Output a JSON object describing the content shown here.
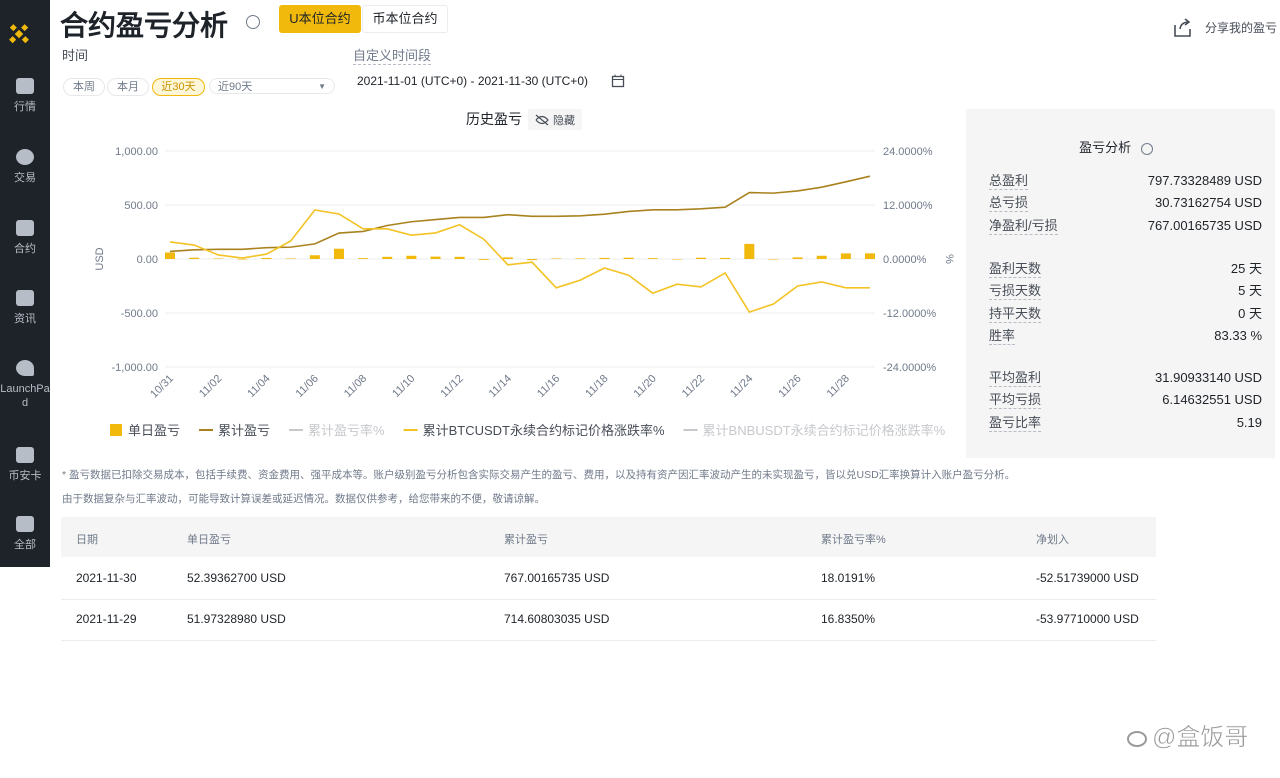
{
  "sidebar": {
    "nav": [
      "行情",
      "交易",
      "合约",
      "资讯",
      "LaunchPad",
      "币安卡",
      "全部"
    ]
  },
  "header": {
    "title": "合约盈亏分析",
    "tabs": [
      "U本位合约",
      "币本位合约"
    ],
    "share": "分享我的盈亏"
  },
  "time_filter": {
    "label": "时间",
    "custom": "自定义时间段",
    "buttons": [
      "本周",
      "本月",
      "近30天",
      "近90天"
    ],
    "range": "2021-11-01 (UTC+0) - 2021-11-30 (UTC+0)"
  },
  "chart_data": {
    "type": "combo",
    "title": "历史盈亏",
    "toggle": "隐藏",
    "y_label": "USD",
    "y2_label": "%",
    "grid": true,
    "legend": "bottom",
    "categories": [
      "10/31",
      null,
      "11/02",
      null,
      "11/04",
      null,
      "11/06",
      null,
      "11/08",
      null,
      "11/10",
      null,
      "11/12",
      null,
      "11/14",
      null,
      "11/16",
      null,
      "11/18",
      null,
      "11/20",
      null,
      "11/22",
      null,
      "11/24",
      null,
      "11/26",
      null,
      "11/28",
      null
    ],
    "ylim": [
      -1000,
      1000
    ],
    "yticks": [
      {
        "value": 1000,
        "label": "1,000.00"
      },
      {
        "value": 500,
        "label": "500.00"
      },
      {
        "value": 0,
        "label": "0.00"
      },
      {
        "value": -500,
        "label": "-500.00"
      },
      {
        "value": -1000,
        "label": "-1,000.00"
      }
    ],
    "y2lim": [
      -24,
      24
    ],
    "y2ticks": [
      {
        "value": 24,
        "label": "24.0000%"
      },
      {
        "value": 12,
        "label": "12.0000%"
      },
      {
        "value": 0,
        "label": "0.0000%"
      },
      {
        "value": -12,
        "label": "-12.0000%"
      },
      {
        "value": -24,
        "label": "-24.0000%"
      }
    ],
    "series": [
      {
        "name": "单日盈亏",
        "type": "bar",
        "color": "#f0b90b",
        "values": [
          60,
          12,
          5,
          -3,
          10,
          5,
          35,
          95,
          8,
          20,
          30,
          22,
          20,
          -8,
          15,
          -10,
          5,
          6,
          10,
          12,
          8,
          -5,
          12,
          10,
          140,
          -5,
          15,
          30,
          51.9732898,
          52.393627
        ]
      },
      {
        "name": "累计盈亏",
        "type": "line",
        "color": "#a9821f",
        "values": [
          70,
          85,
          90,
          90,
          105,
          110,
          140,
          240,
          255,
          310,
          345,
          365,
          385,
          385,
          410,
          395,
          395,
          400,
          415,
          440,
          455,
          455,
          465,
          480,
          615,
          610,
          630,
          665,
          714.60803035,
          767.00165735
        ]
      },
      {
        "name": "累计盈亏率%",
        "type": "line",
        "visible": false
      },
      {
        "name": "累计BTCUSDT永续合约标记价格涨跌率%",
        "type": "line",
        "axis": "y2",
        "color": "#f3c324",
        "values": [
          3.8,
          3.1,
          0.9,
          0.2,
          1.1,
          4.0,
          10.9,
          10.0,
          6.7,
          6.7,
          5.3,
          5.8,
          7.6,
          4.4,
          -1.3,
          -0.7,
          -6.4,
          -4.7,
          -2.0,
          -3.6,
          -7.6,
          -5.6,
          -6.2,
          -3.1,
          -11.8,
          -10.0,
          -6.0,
          -5.1,
          -6.4,
          -6.4
        ]
      },
      {
        "name": "累计BNBUSDT永续合约标记价格涨跌率%",
        "type": "line",
        "visible": false
      }
    ]
  },
  "stats": {
    "title": "盈亏分析",
    "groups": [
      [
        [
          "总盈利",
          "797.73328489 USD"
        ],
        [
          "总亏损",
          "30.73162754 USD"
        ],
        [
          "净盈利/亏损",
          "767.00165735 USD"
        ]
      ],
      [
        [
          "盈利天数",
          "25 天"
        ],
        [
          "亏损天数",
          "5 天"
        ],
        [
          "持平天数",
          "0 天"
        ],
        [
          "胜率",
          "83.33 %"
        ]
      ],
      [
        [
          "平均盈利",
          "31.90933140 USD"
        ],
        [
          "平均亏损",
          "6.14632551 USD"
        ],
        [
          "盈亏比率",
          "5.19"
        ]
      ]
    ]
  },
  "notes": [
    "* 盈亏数据已扣除交易成本，包括手续费、资金费用、强平成本等。账户级别盈亏分析包含实际交易产生的盈亏、费用，以及持有资产因汇率波动产生的未实现盈亏，皆以兑USD汇率换算计入账户盈亏分析。",
    "由于数据复杂与汇率波动，可能导致计算误差或延迟情况。数据仅供参考，给您带来的不便，敬请谅解。"
  ],
  "table": {
    "headers": [
      "日期",
      "单日盈亏",
      "累计盈亏",
      "累计盈亏率%",
      "净划入"
    ],
    "rows": [
      [
        "2021-11-30",
        "52.39362700 USD",
        "767.00165735 USD",
        "18.0191%",
        "-52.51739000 USD"
      ],
      [
        "2021-11-29",
        "51.97328980 USD",
        "714.60803035 USD",
        "16.8350%",
        "-53.97710000 USD"
      ]
    ]
  },
  "watermark": "@盒饭哥"
}
